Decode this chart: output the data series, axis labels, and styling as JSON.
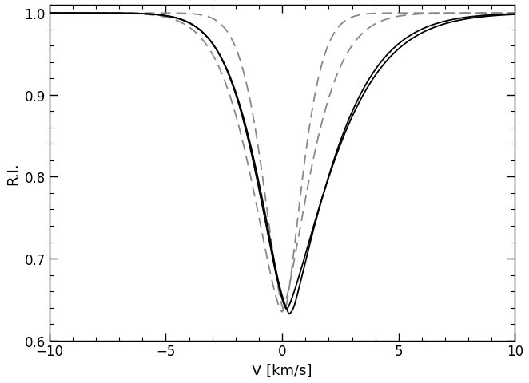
{
  "xlabel": "V [km/s]",
  "ylabel": "R.I.",
  "xlim": [
    -10,
    10
  ],
  "ylim": [
    0.6,
    1.01
  ],
  "xticks": [
    -10,
    -5,
    0,
    5,
    10
  ],
  "yticks": [
    0.6,
    0.7,
    0.8,
    0.9,
    1.0
  ],
  "solid_color": "#000000",
  "dashed_color": "#888888",
  "linewidth_solid": 1.3,
  "linewidth_dashed": 1.3,
  "background_color": "#ffffff",
  "figsize": [
    6.62,
    4.81
  ],
  "dpi": 100
}
